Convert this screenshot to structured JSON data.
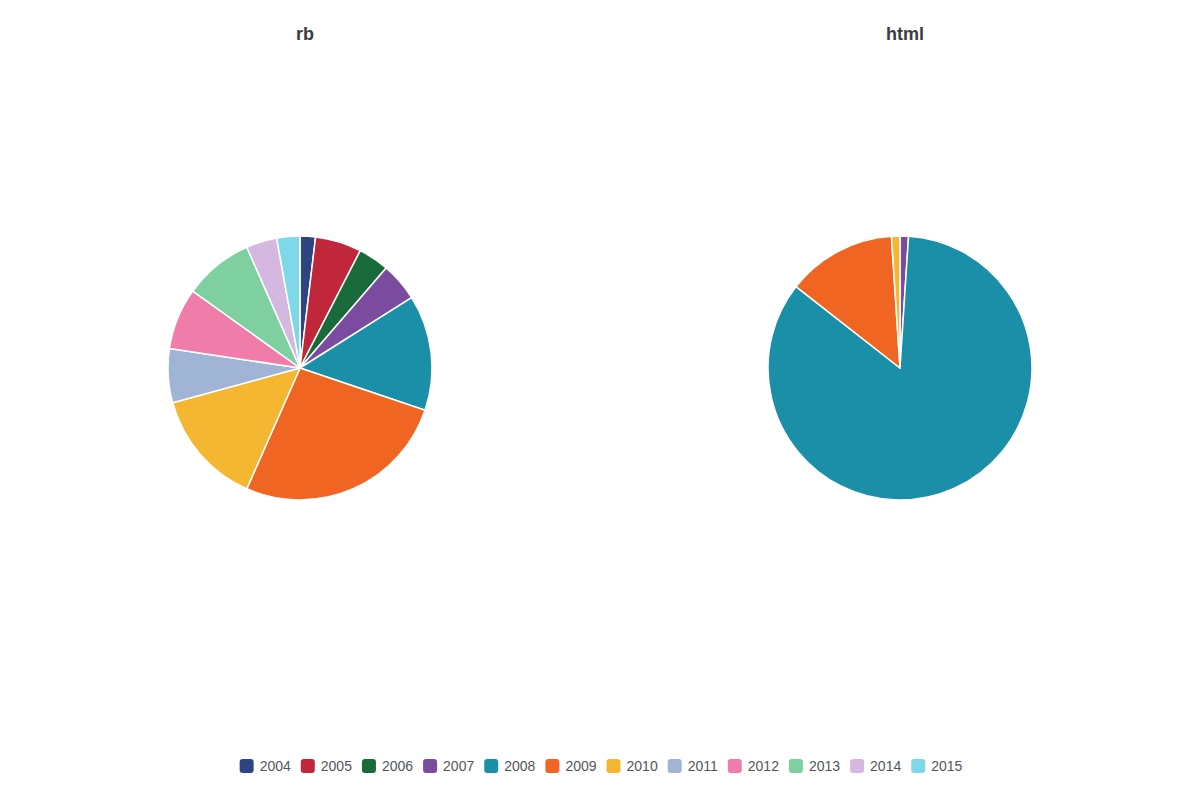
{
  "chart_data": [
    {
      "type": "pie",
      "title": "rb",
      "categories": [
        "2004",
        "2005",
        "2006",
        "2007",
        "2008",
        "2009",
        "2010",
        "2011",
        "2012",
        "2013",
        "2014",
        "2015"
      ],
      "values": [
        2,
        6,
        4,
        5,
        15,
        28,
        15,
        7,
        8,
        9,
        4,
        3
      ],
      "colors": [
        "#2e4482",
        "#c0273b",
        "#1a6b3c",
        "#7b4ba0",
        "#1b8fa8",
        "#f06522",
        "#f5b731",
        "#a0b4d6",
        "#f07caa",
        "#7fd0a0",
        "#d4b8e0",
        "#7fd8e8"
      ],
      "legend": "bottom"
    },
    {
      "type": "pie",
      "title": "html",
      "categories": [
        "2007",
        "2008",
        "2009",
        "2010"
      ],
      "values": [
        1,
        82,
        13,
        1
      ],
      "colors": [
        "#7b4ba0",
        "#1b8fa8",
        "#f06522",
        "#f5b731"
      ],
      "legend": "bottom"
    }
  ]
}
